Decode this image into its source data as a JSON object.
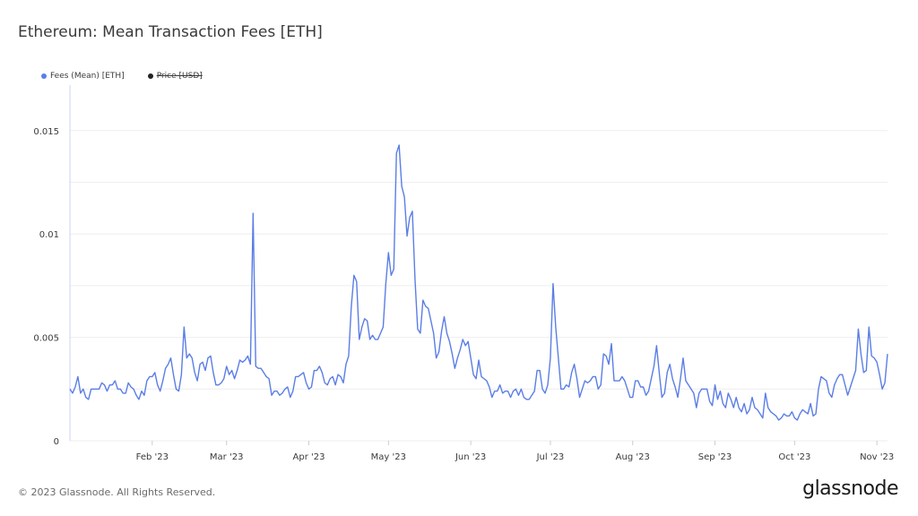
{
  "footer": {
    "copyright": "© 2023 Glassnode. All Rights Reserved.",
    "logo": "glassnode"
  },
  "colors": {
    "fees": "#5b7ee5",
    "price": "#222222",
    "grid": "#eeeeee",
    "axis": "#c8d4f4"
  },
  "chart_data": {
    "type": "line",
    "title": "Ethereum: Mean Transaction Fees [ETH]",
    "legend": [
      {
        "name": "Fees (Mean) [ETH]",
        "color": "#5b7ee5",
        "enabled": true
      },
      {
        "name": "Price [USD]",
        "color": "#222222",
        "enabled": false
      }
    ],
    "legend_placement": "top-left",
    "grid": true,
    "ylim": [
      0,
      0.0172
    ],
    "y_ticks": [
      {
        "value": 0,
        "label": "0"
      },
      {
        "value": 0.005,
        "label": "0.005"
      },
      {
        "value": 0.01,
        "label": "0.01"
      },
      {
        "value": 0.015,
        "label": "0.015"
      }
    ],
    "x_ticks": [
      {
        "label": "Feb '23",
        "index": 31
      },
      {
        "label": "Mar '23",
        "index": 59
      },
      {
        "label": "Apr '23",
        "index": 90
      },
      {
        "label": "May '23",
        "index": 120
      },
      {
        "label": "Jun '23",
        "index": 151
      },
      {
        "label": "Jul '23",
        "index": 181
      },
      {
        "label": "Aug '23",
        "index": 212
      },
      {
        "label": "Sep '23",
        "index": 243
      },
      {
        "label": "Oct '23",
        "index": 273
      },
      {
        "label": "Nov '23",
        "index": 304
      }
    ],
    "series": [
      {
        "name": "Fees (Mean) [ETH]",
        "start_date": "2023-01-01",
        "step_days": 1,
        "values": [
          0.0025,
          0.0023,
          0.0026,
          0.0031,
          0.0023,
          0.0025,
          0.0021,
          0.002,
          0.0025,
          0.0025,
          0.0025,
          0.0025,
          0.0028,
          0.0027,
          0.0024,
          0.0027,
          0.0027,
          0.0029,
          0.0025,
          0.0025,
          0.0023,
          0.0023,
          0.0028,
          0.0026,
          0.0025,
          0.0022,
          0.002,
          0.0024,
          0.0022,
          0.0029,
          0.0031,
          0.0031,
          0.0033,
          0.0027,
          0.0024,
          0.0029,
          0.0035,
          0.0037,
          0.004,
          0.0032,
          0.0025,
          0.0024,
          0.0032,
          0.0055,
          0.004,
          0.0042,
          0.004,
          0.0033,
          0.0029,
          0.0037,
          0.0038,
          0.0034,
          0.004,
          0.0041,
          0.0033,
          0.0027,
          0.0027,
          0.0028,
          0.003,
          0.0036,
          0.0032,
          0.0034,
          0.003,
          0.0034,
          0.0039,
          0.0038,
          0.0039,
          0.0041,
          0.0037,
          0.011,
          0.0036,
          0.0035,
          0.0035,
          0.0033,
          0.0031,
          0.003,
          0.0022,
          0.0024,
          0.0024,
          0.0022,
          0.0023,
          0.0025,
          0.0026,
          0.0021,
          0.0024,
          0.0031,
          0.0031,
          0.0032,
          0.0033,
          0.0028,
          0.0025,
          0.0026,
          0.0034,
          0.0034,
          0.0036,
          0.0033,
          0.0028,
          0.0027,
          0.003,
          0.0031,
          0.0027,
          0.0032,
          0.0031,
          0.0028,
          0.0037,
          0.0041,
          0.0065,
          0.008,
          0.0077,
          0.0049,
          0.0055,
          0.0059,
          0.0058,
          0.0049,
          0.0051,
          0.0049,
          0.0049,
          0.0052,
          0.0055,
          0.0076,
          0.0091,
          0.008,
          0.0083,
          0.0139,
          0.0143,
          0.0123,
          0.0118,
          0.0099,
          0.0108,
          0.0111,
          0.0078,
          0.0054,
          0.0052,
          0.0068,
          0.0065,
          0.0064,
          0.0058,
          0.0052,
          0.004,
          0.0043,
          0.0053,
          0.006,
          0.0052,
          0.0048,
          0.0042,
          0.0035,
          0.004,
          0.0044,
          0.0049,
          0.0046,
          0.0048,
          0.004,
          0.0032,
          0.003,
          0.0039,
          0.0031,
          0.003,
          0.0029,
          0.0026,
          0.0021,
          0.0024,
          0.0024,
          0.0027,
          0.0023,
          0.0024,
          0.0024,
          0.0021,
          0.0024,
          0.0025,
          0.0022,
          0.0025,
          0.0021,
          0.002,
          0.002,
          0.0022,
          0.0024,
          0.0034,
          0.0034,
          0.0025,
          0.0023,
          0.0027,
          0.004,
          0.0076,
          0.0055,
          0.004,
          0.0025,
          0.0025,
          0.0027,
          0.0026,
          0.0033,
          0.0037,
          0.003,
          0.0021,
          0.0025,
          0.0029,
          0.0028,
          0.0029,
          0.0031,
          0.0031,
          0.0025,
          0.0027,
          0.0042,
          0.0041,
          0.0037,
          0.0047,
          0.0029,
          0.0029,
          0.0029,
          0.0031,
          0.0029,
          0.0025,
          0.0021,
          0.0021,
          0.0029,
          0.0029,
          0.0026,
          0.0026,
          0.0022,
          0.0024,
          0.003,
          0.0036,
          0.0046,
          0.0033,
          0.0021,
          0.0023,
          0.0033,
          0.0037,
          0.003,
          0.0026,
          0.0021,
          0.003,
          0.004,
          0.0029,
          0.0027,
          0.0025,
          0.0023,
          0.0016,
          0.0023,
          0.0025,
          0.0025,
          0.0025,
          0.0019,
          0.0017,
          0.0027,
          0.002,
          0.0024,
          0.0018,
          0.0016,
          0.0023,
          0.002,
          0.0016,
          0.0021,
          0.0016,
          0.0014,
          0.0018,
          0.0013,
          0.0015,
          0.0021,
          0.0016,
          0.0015,
          0.0013,
          0.0011,
          0.0023,
          0.0016,
          0.0014,
          0.0013,
          0.0012,
          0.001,
          0.0011,
          0.0013,
          0.0012,
          0.0012,
          0.0014,
          0.0011,
          0.001,
          0.0013,
          0.0015,
          0.0014,
          0.0013,
          0.0018,
          0.0012,
          0.0013,
          0.0025,
          0.0031,
          0.003,
          0.0029,
          0.0023,
          0.0021,
          0.0027,
          0.003,
          0.0032,
          0.0032,
          0.0027,
          0.0022,
          0.0026,
          0.003,
          0.0034,
          0.0054,
          0.0042,
          0.0033,
          0.0034,
          0.0055,
          0.0041,
          0.004,
          0.0038,
          0.0032,
          0.0025,
          0.0028,
          0.0042
        ]
      }
    ]
  }
}
